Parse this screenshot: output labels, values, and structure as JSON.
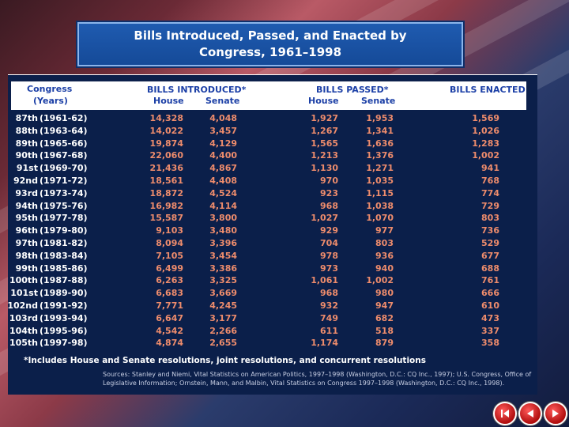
{
  "title": "Bills Introduced, Passed, and Enacted by Congress, 1961–1998",
  "headers": {
    "congress": "Congress",
    "years": "(Years)",
    "bills_introduced": "BILLS INTRODUCED*",
    "bills_passed": "BILLS PASSED*",
    "bills_enacted": "BILLS ENACTED",
    "house": "House",
    "senate": "Senate"
  },
  "rows": [
    {
      "congress": "87th",
      "years": "(1961-62)",
      "intro_house": "14,328",
      "intro_senate": "4,048",
      "passed_house": "1,927",
      "passed_senate": "1,953",
      "enacted": "1,569"
    },
    {
      "congress": "88th",
      "years": "(1963-64)",
      "intro_house": "14,022",
      "intro_senate": "3,457",
      "passed_house": "1,267",
      "passed_senate": "1,341",
      "enacted": "1,026"
    },
    {
      "congress": "89th",
      "years": "(1965-66)",
      "intro_house": "19,874",
      "intro_senate": "4,129",
      "passed_house": "1,565",
      "passed_senate": "1,636",
      "enacted": "1,283"
    },
    {
      "congress": "90th",
      "years": "(1967-68)",
      "intro_house": "22,060",
      "intro_senate": "4,400",
      "passed_house": "1,213",
      "passed_senate": "1,376",
      "enacted": "1,002"
    },
    {
      "congress": "91st",
      "years": "(1969-70)",
      "intro_house": "21,436",
      "intro_senate": "4,867",
      "passed_house": "1,130",
      "passed_senate": "1,271",
      "enacted": "941"
    },
    {
      "congress": "92nd",
      "years": "(1971-72)",
      "intro_house": "18,561",
      "intro_senate": "4,408",
      "passed_house": "970",
      "passed_senate": "1,035",
      "enacted": "768"
    },
    {
      "congress": "93rd",
      "years": "(1973-74)",
      "intro_house": "18,872",
      "intro_senate": "4,524",
      "passed_house": "923",
      "passed_senate": "1,115",
      "enacted": "774"
    },
    {
      "congress": "94th",
      "years": "(1975-76)",
      "intro_house": "16,982",
      "intro_senate": "4,114",
      "passed_house": "968",
      "passed_senate": "1,038",
      "enacted": "729"
    },
    {
      "congress": "95th",
      "years": "(1977-78)",
      "intro_house": "15,587",
      "intro_senate": "3,800",
      "passed_house": "1,027",
      "passed_senate": "1,070",
      "enacted": "803"
    },
    {
      "congress": "96th",
      "years": "(1979-80)",
      "intro_house": "9,103",
      "intro_senate": "3,480",
      "passed_house": "929",
      "passed_senate": "977",
      "enacted": "736"
    },
    {
      "congress": "97th",
      "years": "(1981-82)",
      "intro_house": "8,094",
      "intro_senate": "3,396",
      "passed_house": "704",
      "passed_senate": "803",
      "enacted": "529"
    },
    {
      "congress": "98th",
      "years": "(1983-84)",
      "intro_house": "7,105",
      "intro_senate": "3,454",
      "passed_house": "978",
      "passed_senate": "936",
      "enacted": "677"
    },
    {
      "congress": "99th",
      "years": "(1985-86)",
      "intro_house": "6,499",
      "intro_senate": "3,386",
      "passed_house": "973",
      "passed_senate": "940",
      "enacted": "688"
    },
    {
      "congress": "100th",
      "years": "(1987-88)",
      "intro_house": "6,263",
      "intro_senate": "3,325",
      "passed_house": "1,061",
      "passed_senate": "1,002",
      "enacted": "761"
    },
    {
      "congress": "101st",
      "years": "(1989-90)",
      "intro_house": "6,683",
      "intro_senate": "3,669",
      "passed_house": "968",
      "passed_senate": "980",
      "enacted": "666"
    },
    {
      "congress": "102nd",
      "years": "(1991-92)",
      "intro_house": "7,771",
      "intro_senate": "4,245",
      "passed_house": "932",
      "passed_senate": "947",
      "enacted": "610"
    },
    {
      "congress": "103rd",
      "years": "(1993-94)",
      "intro_house": "6,647",
      "intro_senate": "3,177",
      "passed_house": "749",
      "passed_senate": "682",
      "enacted": "473"
    },
    {
      "congress": "104th",
      "years": "(1995-96)",
      "intro_house": "4,542",
      "intro_senate": "2,266",
      "passed_house": "611",
      "passed_senate": "518",
      "enacted": "337"
    },
    {
      "congress": "105th",
      "years": "(1997-98)",
      "intro_house": "4,874",
      "intro_senate": "2,655",
      "passed_house": "1,174",
      "passed_senate": "879",
      "enacted": "358"
    }
  ],
  "footnote": "*Includes House and Senate resolutions, joint resolutions, and concurrent resolutions",
  "source": "Sources: Stanley and Niemi, Vital Statistics on American Politics, 1997–1998 (Washington, D.C.: CQ Inc., 1997); U.S. Congress, Office of Legislative Information; Ornstein, Mann, and Malbin, Vital Statistics on Congress 1997–1998 (Washington, D.C.: CQ Inc., 1998).",
  "nav": {
    "first_icon": "skip-to-start-icon",
    "back_icon": "back-arrow-icon",
    "forward_icon": "forward-arrow-icon",
    "button_color": "#c8161d"
  }
}
